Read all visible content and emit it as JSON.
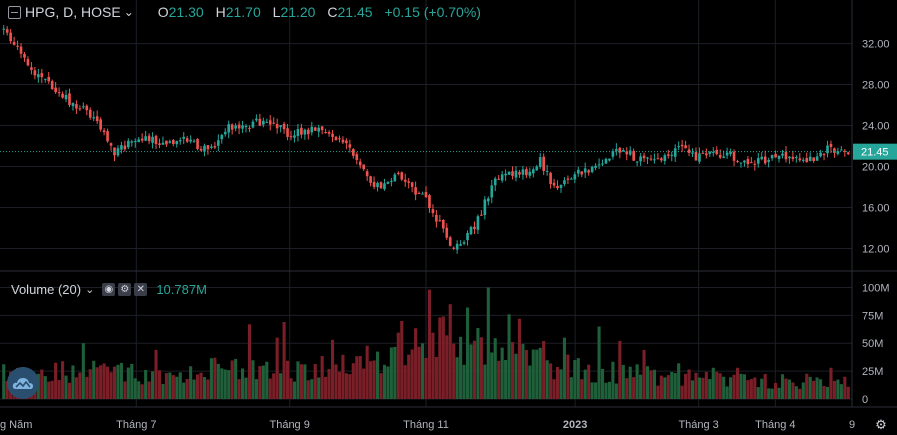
{
  "header": {
    "symbol": "HPG, D, HOSE",
    "open_label": "O",
    "open": "21.30",
    "high_label": "H",
    "high": "21.70",
    "low_label": "L",
    "low": "21.20",
    "close_label": "C",
    "close": "21.45",
    "change": "+0.15 (+0.70%)"
  },
  "volume_indicator": {
    "title": "Volume (20)",
    "value": "10.787M"
  },
  "colors": {
    "up": "#26a69a",
    "down": "#ef5350",
    "vol_up": "#1f5f3a",
    "vol_down": "#7a1f27",
    "last_price": "#26a69a"
  },
  "chart_data": {
    "type": "candlestick",
    "price_axis": {
      "ticks": [
        32.0,
        28.0,
        24.0,
        20.0,
        16.0,
        12.0
      ],
      "tick_labels": [
        "32.00",
        "28.00",
        "24.00",
        "20.00",
        "16.00",
        "12.00"
      ],
      "range": [
        9.9,
        34.3
      ]
    },
    "volume_axis": {
      "ticks": [
        100,
        75,
        50,
        25,
        0
      ],
      "tick_labels": [
        "100M",
        "75M",
        "50M",
        "25M",
        "0"
      ],
      "range": [
        0,
        104
      ]
    },
    "time_axis": {
      "labels": [
        "g Năm",
        "Tháng 7",
        "Tháng 9",
        "Tháng 11",
        "2023",
        "Tháng 3",
        "Tháng 4",
        "9"
      ],
      "positions": [
        0.0,
        0.16,
        0.34,
        0.5,
        0.675,
        0.82,
        0.91,
        1.0
      ]
    },
    "last_price": 21.45,
    "last_price_label": "21.45",
    "price_path": [
      [
        0.0,
        33.3
      ],
      [
        0.02,
        31.0
      ],
      [
        0.04,
        29.0
      ],
      [
        0.06,
        27.3
      ],
      [
        0.08,
        26.3
      ],
      [
        0.1,
        25.3
      ],
      [
        0.12,
        23.0
      ],
      [
        0.13,
        21.2
      ],
      [
        0.14,
        21.8
      ],
      [
        0.16,
        22.8
      ],
      [
        0.18,
        22.4
      ],
      [
        0.2,
        22.5
      ],
      [
        0.22,
        22.8
      ],
      [
        0.235,
        21.7
      ],
      [
        0.245,
        21.6
      ],
      [
        0.26,
        23.6
      ],
      [
        0.28,
        24.0
      ],
      [
        0.3,
        24.3
      ],
      [
        0.32,
        24.0
      ],
      [
        0.34,
        23.0
      ],
      [
        0.36,
        23.6
      ],
      [
        0.38,
        23.4
      ],
      [
        0.4,
        22.8
      ],
      [
        0.41,
        22.0
      ],
      [
        0.42,
        20.5
      ],
      [
        0.435,
        18.0
      ],
      [
        0.45,
        18.2
      ],
      [
        0.465,
        19.6
      ],
      [
        0.48,
        18.0
      ],
      [
        0.5,
        16.8
      ],
      [
        0.51,
        15.2
      ],
      [
        0.52,
        14.0
      ],
      [
        0.53,
        12.3
      ],
      [
        0.54,
        12.0
      ],
      [
        0.55,
        13.8
      ],
      [
        0.56,
        14.4
      ],
      [
        0.575,
        17.5
      ],
      [
        0.59,
        19.5
      ],
      [
        0.605,
        19.2
      ],
      [
        0.62,
        19.4
      ],
      [
        0.635,
        20.5
      ],
      [
        0.645,
        19.0
      ],
      [
        0.655,
        17.8
      ],
      [
        0.665,
        18.4
      ],
      [
        0.68,
        19.5
      ],
      [
        0.7,
        20.0
      ],
      [
        0.715,
        20.8
      ],
      [
        0.73,
        21.8
      ],
      [
        0.745,
        21.0
      ],
      [
        0.76,
        20.6
      ],
      [
        0.78,
        20.8
      ],
      [
        0.8,
        21.8
      ],
      [
        0.82,
        20.8
      ],
      [
        0.84,
        21.3
      ],
      [
        0.86,
        21.0
      ],
      [
        0.88,
        20.5
      ],
      [
        0.9,
        20.7
      ],
      [
        0.92,
        21.3
      ],
      [
        0.94,
        20.7
      ],
      [
        0.96,
        21.0
      ],
      [
        0.975,
        21.6
      ],
      [
        0.99,
        21.5
      ],
      [
        1.0,
        21.45
      ]
    ],
    "volume_profile": [
      [
        0.0,
        22
      ],
      [
        0.1,
        24
      ],
      [
        0.2,
        22
      ],
      [
        0.25,
        27
      ],
      [
        0.3,
        24
      ],
      [
        0.35,
        25
      ],
      [
        0.4,
        28
      ],
      [
        0.45,
        38
      ],
      [
        0.5,
        48
      ],
      [
        0.53,
        62
      ],
      [
        0.56,
        45
      ],
      [
        0.6,
        36
      ],
      [
        0.65,
        32
      ],
      [
        0.7,
        25
      ],
      [
        0.75,
        22
      ],
      [
        0.8,
        20
      ],
      [
        0.85,
        17
      ],
      [
        0.9,
        16
      ],
      [
        0.95,
        16
      ],
      [
        1.0,
        14
      ]
    ],
    "volume_spikes": [
      [
        0.095,
        50
      ],
      [
        0.18,
        44
      ],
      [
        0.25,
        37
      ],
      [
        0.29,
        67
      ],
      [
        0.325,
        55
      ],
      [
        0.33,
        69
      ],
      [
        0.39,
        53
      ],
      [
        0.43,
        45
      ],
      [
        0.47,
        70
      ],
      [
        0.505,
        98
      ],
      [
        0.53,
        65
      ],
      [
        0.55,
        82
      ],
      [
        0.575,
        100
      ],
      [
        0.58,
        42
      ],
      [
        0.6,
        76
      ],
      [
        0.61,
        72
      ],
      [
        0.62,
        44
      ],
      [
        0.64,
        52
      ],
      [
        0.665,
        55
      ],
      [
        0.705,
        65
      ],
      [
        0.73,
        52
      ],
      [
        0.76,
        44
      ],
      [
        0.8,
        32
      ],
      [
        0.84,
        28
      ],
      [
        0.87,
        28
      ],
      [
        0.98,
        28
      ]
    ]
  }
}
